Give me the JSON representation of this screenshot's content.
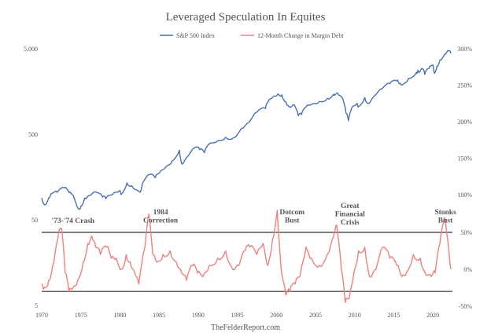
{
  "chart_data": {
    "type": "line",
    "title": "Leveraged Speculation In Equites",
    "source": "TheFelderReport.com",
    "legend_position": "top-center",
    "grid": false,
    "colors": {
      "sp500": "#4a6fb5",
      "margin": "#f08080",
      "band": "#333333"
    },
    "x_axis": {
      "range": [
        1970,
        2022.5
      ],
      "ticks": [
        "1970",
        "1975",
        "1980",
        "1985",
        "1990",
        "1995",
        "2000",
        "2005",
        "2010",
        "2015",
        "2020"
      ]
    },
    "left_axis": {
      "scale": "log",
      "range": [
        5,
        7000
      ],
      "ticks": [
        "5,000",
        "500",
        "50",
        "5"
      ]
    },
    "right_axis_top": {
      "range": [
        0.8,
        3.0
      ],
      "ticks": [
        "300%",
        "250%",
        "200%",
        "150%",
        "100%"
      ]
    },
    "right_axis_bottom": {
      "range": [
        -0.5,
        0.55
      ],
      "ticks": [
        "50%",
        "0%",
        "-50%"
      ]
    },
    "band_lines": [
      0.5,
      -0.3
    ],
    "series": [
      {
        "name": "S&P 500 Index",
        "axis": "left-log",
        "points": [
          [
            1970.0,
            90
          ],
          [
            1970.4,
            75
          ],
          [
            1970.9,
            90
          ],
          [
            1971.3,
            102
          ],
          [
            1972.0,
            105
          ],
          [
            1972.9,
            118
          ],
          [
            1973.5,
            104
          ],
          [
            1974.0,
            97
          ],
          [
            1974.7,
            67
          ],
          [
            1975.0,
            72
          ],
          [
            1975.5,
            90
          ],
          [
            1976.0,
            96
          ],
          [
            1976.9,
            106
          ],
          [
            1977.8,
            92
          ],
          [
            1978.2,
            88
          ],
          [
            1979.0,
            98
          ],
          [
            1980.0,
            110
          ],
          [
            1980.2,
            100
          ],
          [
            1980.9,
            135
          ],
          [
            1981.5,
            125
          ],
          [
            1982.6,
            105
          ],
          [
            1983.0,
            140
          ],
          [
            1983.8,
            168
          ],
          [
            1984.5,
            155
          ],
          [
            1985.0,
            175
          ],
          [
            1985.9,
            210
          ],
          [
            1986.7,
            245
          ],
          [
            1987.6,
            325
          ],
          [
            1987.9,
            225
          ],
          [
            1988.5,
            265
          ],
          [
            1989.6,
            350
          ],
          [
            1990.2,
            330
          ],
          [
            1990.8,
            305
          ],
          [
            1991.3,
            380
          ],
          [
            1992.5,
            420
          ],
          [
            1993.5,
            460
          ],
          [
            1994.5,
            455
          ],
          [
            1995.5,
            580
          ],
          [
            1996.5,
            690
          ],
          [
            1997.5,
            910
          ],
          [
            1998.6,
            1000
          ],
          [
            1998.9,
            1180
          ],
          [
            1999.5,
            1350
          ],
          [
            2000.2,
            1480
          ],
          [
            2000.7,
            1440
          ],
          [
            2001.2,
            1200
          ],
          [
            2001.7,
            1040
          ],
          [
            2002.3,
            1100
          ],
          [
            2002.8,
            820
          ],
          [
            2003.2,
            850
          ],
          [
            2003.8,
            1050
          ],
          [
            2004.5,
            1120
          ],
          [
            2005.5,
            1210
          ],
          [
            2006.5,
            1310
          ],
          [
            2007.3,
            1470
          ],
          [
            2007.8,
            1520
          ],
          [
            2008.5,
            1280
          ],
          [
            2008.9,
            880
          ],
          [
            2009.2,
            720
          ],
          [
            2009.6,
            1000
          ],
          [
            2010.3,
            1150
          ],
          [
            2010.5,
            1060
          ],
          [
            2011.3,
            1340
          ],
          [
            2011.7,
            1140
          ],
          [
            2012.5,
            1400
          ],
          [
            2013.5,
            1700
          ],
          [
            2014.5,
            1950
          ],
          [
            2015.4,
            2100
          ],
          [
            2015.7,
            1950
          ],
          [
            2016.1,
            1900
          ],
          [
            2016.9,
            2250
          ],
          [
            2017.9,
            2650
          ],
          [
            2018.1,
            2800
          ],
          [
            2018.2,
            2630
          ],
          [
            2018.7,
            2900
          ],
          [
            2018.95,
            2500
          ],
          [
            2019.5,
            2950
          ],
          [
            2019.99,
            3230
          ],
          [
            2020.2,
            2580
          ],
          [
            2020.5,
            3100
          ],
          [
            2020.9,
            3700
          ],
          [
            2021.5,
            4300
          ],
          [
            2021.99,
            4750
          ],
          [
            2022.3,
            4400
          ]
        ]
      },
      {
        "name": "12-Month Change in Margin Debt",
        "axis": "right-bottom",
        "points": [
          [
            1970.0,
            -0.2
          ],
          [
            1970.3,
            -0.25
          ],
          [
            1970.9,
            -0.15
          ],
          [
            1971.4,
            0.05
          ],
          [
            1971.9,
            0.35
          ],
          [
            1972.3,
            0.55
          ],
          [
            1972.6,
            0.5
          ],
          [
            1973.0,
            -0.05
          ],
          [
            1973.5,
            -0.3
          ],
          [
            1974.0,
            -0.25
          ],
          [
            1974.6,
            -0.15
          ],
          [
            1975.3,
            0.1
          ],
          [
            1975.9,
            0.35
          ],
          [
            1976.4,
            0.45
          ],
          [
            1976.9,
            0.3
          ],
          [
            1977.5,
            0.2
          ],
          [
            1978.3,
            0.3
          ],
          [
            1978.9,
            0.15
          ],
          [
            1979.5,
            0.15
          ],
          [
            1980.2,
            0.0
          ],
          [
            1980.8,
            0.2
          ],
          [
            1981.3,
            0.1
          ],
          [
            1981.9,
            -0.05
          ],
          [
            1982.4,
            -0.2
          ],
          [
            1983.2,
            0.3
          ],
          [
            1983.7,
            0.75
          ],
          [
            1984.2,
            0.2
          ],
          [
            1984.8,
            0.1
          ],
          [
            1985.5,
            0.2
          ],
          [
            1986.4,
            0.25
          ],
          [
            1987.2,
            0.1
          ],
          [
            1987.9,
            -0.05
          ],
          [
            1988.5,
            -0.15
          ],
          [
            1989.3,
            0.05
          ],
          [
            1989.9,
            -0.05
          ],
          [
            1990.6,
            -0.1
          ],
          [
            1991.4,
            0.05
          ],
          [
            1992.5,
            0.15
          ],
          [
            1993.5,
            0.25
          ],
          [
            1994.4,
            0.0
          ],
          [
            1995.2,
            0.05
          ],
          [
            1996.0,
            0.25
          ],
          [
            1996.6,
            0.3
          ],
          [
            1997.5,
            0.2
          ],
          [
            1998.3,
            0.35
          ],
          [
            1998.9,
            0.05
          ],
          [
            1999.5,
            0.4
          ],
          [
            2000.1,
            0.8
          ],
          [
            2000.6,
            0.0
          ],
          [
            2001.2,
            -0.35
          ],
          [
            2001.7,
            -0.3
          ],
          [
            2002.4,
            -0.2
          ],
          [
            2003.0,
            -0.1
          ],
          [
            2003.8,
            0.3
          ],
          [
            2004.5,
            0.15
          ],
          [
            2005.5,
            0.05
          ],
          [
            2006.5,
            0.2
          ],
          [
            2007.3,
            0.45
          ],
          [
            2007.7,
            0.6
          ],
          [
            2008.3,
            0.0
          ],
          [
            2008.8,
            -0.45
          ],
          [
            2009.3,
            -0.4
          ],
          [
            2009.9,
            -0.05
          ],
          [
            2010.5,
            0.25
          ],
          [
            2011.3,
            0.3
          ],
          [
            2011.9,
            -0.1
          ],
          [
            2012.7,
            0.0
          ],
          [
            2013.6,
            0.3
          ],
          [
            2014.5,
            0.15
          ],
          [
            2015.4,
            0.05
          ],
          [
            2016.0,
            -0.1
          ],
          [
            2016.6,
            -0.05
          ],
          [
            2017.5,
            0.2
          ],
          [
            2018.4,
            0.15
          ],
          [
            2019.0,
            -0.05
          ],
          [
            2019.8,
            -0.1
          ],
          [
            2020.3,
            -0.05
          ],
          [
            2020.9,
            0.35
          ],
          [
            2021.5,
            0.7
          ],
          [
            2021.9,
            0.4
          ],
          [
            2022.3,
            0.0
          ]
        ]
      }
    ],
    "annotations": [
      {
        "lines": [
          "'73-'74 Crash"
        ],
        "x": 1974.0,
        "y": 0.58
      },
      {
        "lines": [
          "1984",
          "Correction"
        ],
        "x": 1985.2,
        "y": 0.58
      },
      {
        "lines": [
          "Dotcom",
          "Bust"
        ],
        "x": 2002.0,
        "y": 0.58
      },
      {
        "lines": [
          "Great",
          "Financial",
          "Crisis"
        ],
        "x": 2009.4,
        "y": 0.58
      },
      {
        "lines": [
          "Stonks",
          "Bust"
        ],
        "x": 2021.6,
        "y": 0.58
      }
    ]
  }
}
